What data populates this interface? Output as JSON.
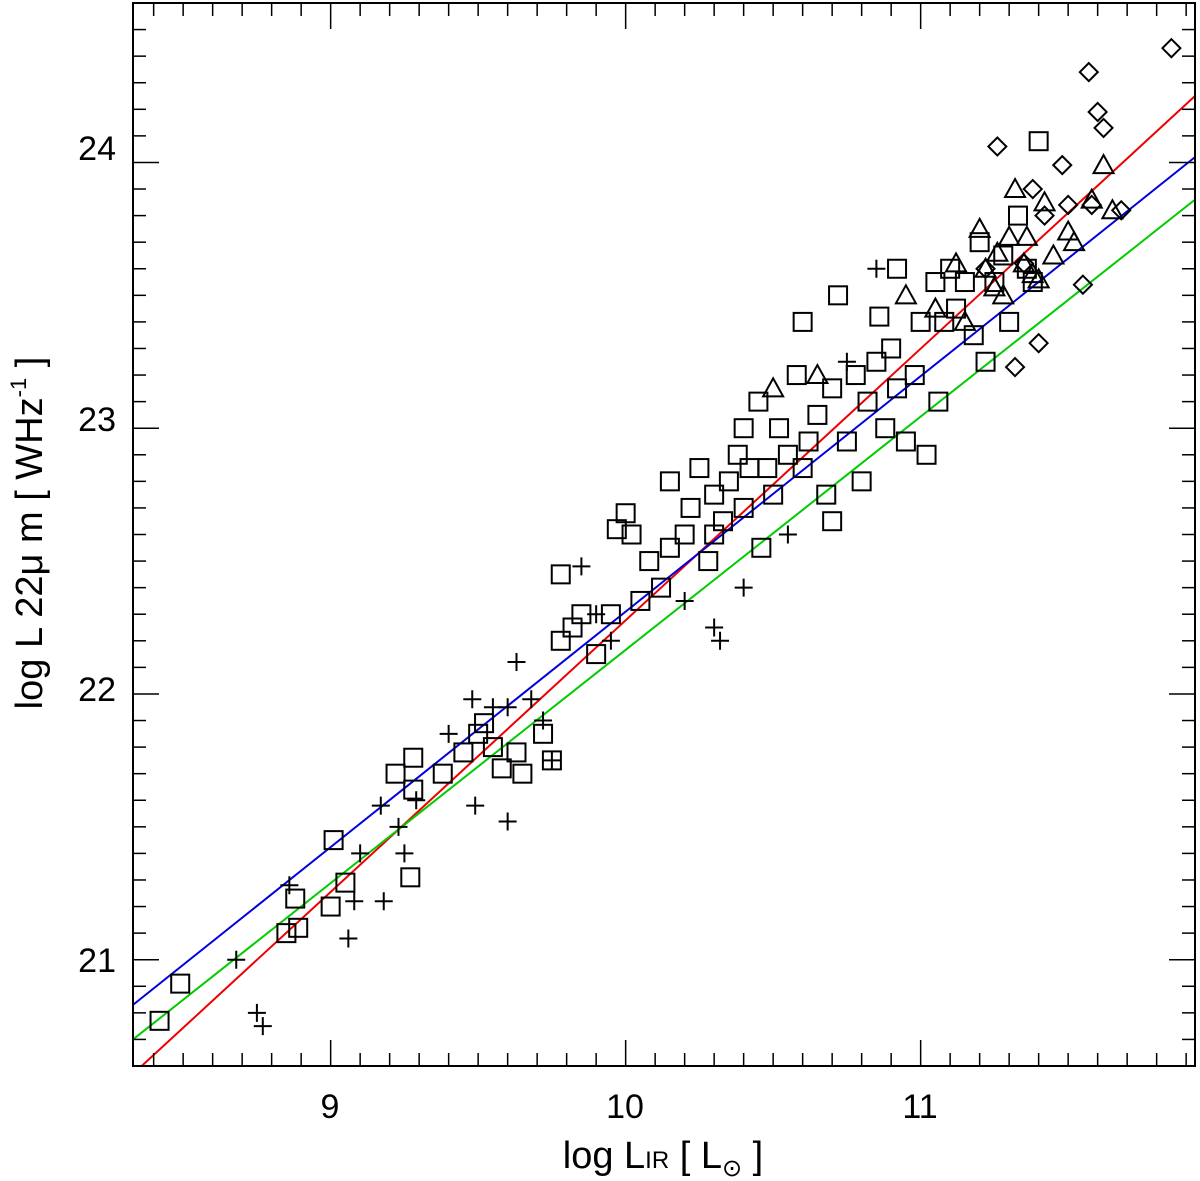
{
  "chart_data": {
    "type": "scatter",
    "xlabel": {
      "prefix": "log L",
      "sub": "IR",
      "open": " [ L",
      "sun": "⊙",
      "close": " ]"
    },
    "ylabel": {
      "prefix": "log L 22",
      "mu": "μ",
      "mid": " m [ WHz",
      "sup": "-1",
      "close": " ]"
    },
    "xlim": [
      8.33,
      11.93
    ],
    "ylim": [
      20.6,
      24.6
    ],
    "x_ticks": [
      "9",
      "10",
      "11"
    ],
    "y_ticks": [
      "21",
      "22",
      "23",
      "24"
    ],
    "x_tick_values": [
      9,
      10,
      11
    ],
    "y_tick_values": [
      21,
      22,
      23,
      24
    ],
    "x_minor_step": 0.1,
    "y_minor_step": 0.1,
    "colors": {
      "red": "#ee0000",
      "blue": "#0000dd",
      "green": "#00cc00",
      "marker": "#000000"
    },
    "fit_lines": [
      {
        "color": "red",
        "x": [
          8.33,
          11.93
        ],
        "y": [
          20.57,
          24.25
        ]
      },
      {
        "color": "blue",
        "x": [
          8.33,
          11.93
        ],
        "y": [
          20.83,
          24.02
        ]
      },
      {
        "color": "green",
        "x": [
          8.33,
          11.93
        ],
        "y": [
          20.7,
          23.86
        ]
      }
    ],
    "series": [
      {
        "marker": "square",
        "points": [
          [
            8.42,
            20.77
          ],
          [
            8.49,
            20.91
          ],
          [
            8.85,
            21.1
          ],
          [
            8.89,
            21.12
          ],
          [
            8.88,
            21.23
          ],
          [
            9.0,
            21.2
          ],
          [
            9.01,
            21.45
          ],
          [
            9.05,
            21.29
          ],
          [
            9.27,
            21.31
          ],
          [
            9.22,
            21.7
          ],
          [
            9.28,
            21.76
          ],
          [
            9.28,
            21.64
          ],
          [
            9.38,
            21.7
          ],
          [
            9.45,
            21.78
          ],
          [
            9.5,
            21.85
          ],
          [
            9.55,
            21.8
          ],
          [
            9.52,
            21.89
          ],
          [
            9.58,
            21.72
          ],
          [
            9.65,
            21.7
          ],
          [
            9.63,
            21.78
          ],
          [
            9.72,
            21.85
          ],
          [
            9.75,
            21.75
          ],
          [
            9.78,
            22.45
          ],
          [
            9.78,
            22.2
          ],
          [
            9.82,
            22.25
          ],
          [
            9.85,
            22.3
          ],
          [
            9.9,
            22.15
          ],
          [
            9.95,
            22.3
          ],
          [
            9.97,
            22.62
          ],
          [
            10.0,
            22.68
          ],
          [
            10.02,
            22.6
          ],
          [
            10.05,
            22.35
          ],
          [
            10.08,
            22.5
          ],
          [
            10.12,
            22.4
          ],
          [
            10.15,
            22.55
          ],
          [
            10.15,
            22.8
          ],
          [
            10.2,
            22.6
          ],
          [
            10.22,
            22.7
          ],
          [
            10.25,
            22.85
          ],
          [
            10.28,
            22.5
          ],
          [
            10.3,
            22.75
          ],
          [
            10.33,
            22.65
          ],
          [
            10.35,
            22.8
          ],
          [
            10.38,
            22.9
          ],
          [
            10.4,
            22.7
          ],
          [
            10.42,
            22.85
          ],
          [
            10.45,
            23.1
          ],
          [
            10.46,
            22.55
          ],
          [
            10.48,
            22.85
          ],
          [
            10.5,
            22.75
          ],
          [
            10.52,
            23.0
          ],
          [
            10.55,
            22.9
          ],
          [
            10.58,
            23.2
          ],
          [
            10.6,
            22.85
          ],
          [
            10.62,
            22.95
          ],
          [
            10.6,
            23.4
          ],
          [
            10.65,
            23.05
          ],
          [
            10.68,
            22.75
          ],
          [
            10.7,
            23.15
          ],
          [
            10.7,
            22.65
          ],
          [
            10.72,
            23.5
          ],
          [
            10.75,
            22.95
          ],
          [
            10.78,
            23.2
          ],
          [
            10.8,
            22.8
          ],
          [
            10.82,
            23.1
          ],
          [
            10.85,
            23.25
          ],
          [
            10.88,
            23.0
          ],
          [
            10.9,
            23.3
          ],
          [
            10.92,
            23.15
          ],
          [
            10.95,
            22.95
          ],
          [
            10.98,
            23.2
          ],
          [
            11.0,
            23.4
          ],
          [
            11.02,
            22.9
          ],
          [
            11.05,
            23.55
          ],
          [
            11.08,
            23.4
          ],
          [
            11.1,
            23.6
          ],
          [
            11.12,
            23.45
          ],
          [
            11.15,
            23.55
          ],
          [
            11.18,
            23.35
          ],
          [
            11.2,
            23.7
          ],
          [
            11.22,
            23.25
          ],
          [
            11.25,
            23.55
          ],
          [
            11.28,
            23.65
          ],
          [
            11.3,
            23.4
          ],
          [
            11.33,
            23.8
          ],
          [
            11.36,
            23.6
          ],
          [
            11.38,
            23.55
          ],
          [
            11.4,
            24.08
          ],
          [
            10.92,
            23.6
          ],
          [
            10.86,
            23.42
          ],
          [
            11.06,
            23.1
          ],
          [
            10.4,
            23.0
          ],
          [
            10.3,
            22.6
          ]
        ]
      },
      {
        "marker": "plus",
        "points": [
          [
            8.68,
            21.0
          ],
          [
            8.75,
            20.8
          ],
          [
            8.77,
            20.75
          ],
          [
            8.86,
            21.28
          ],
          [
            9.06,
            21.08
          ],
          [
            9.08,
            21.22
          ],
          [
            9.1,
            21.4
          ],
          [
            9.17,
            21.58
          ],
          [
            9.18,
            21.22
          ],
          [
            9.23,
            21.5
          ],
          [
            9.25,
            21.4
          ],
          [
            9.29,
            21.6
          ],
          [
            9.4,
            21.85
          ],
          [
            9.48,
            21.98
          ],
          [
            9.49,
            21.58
          ],
          [
            9.55,
            21.95
          ],
          [
            9.6,
            21.52
          ],
          [
            9.63,
            22.12
          ],
          [
            9.68,
            21.98
          ],
          [
            9.72,
            21.9
          ],
          [
            9.75,
            21.75
          ],
          [
            9.85,
            22.48
          ],
          [
            9.9,
            22.3
          ],
          [
            10.3,
            22.25
          ],
          [
            10.32,
            22.2
          ],
          [
            10.4,
            22.4
          ],
          [
            10.85,
            23.6
          ],
          [
            10.75,
            23.25
          ],
          [
            10.55,
            22.6
          ],
          [
            10.2,
            22.35
          ],
          [
            9.95,
            22.2
          ],
          [
            9.6,
            21.95
          ]
        ]
      },
      {
        "marker": "triangle",
        "points": [
          [
            10.5,
            23.15
          ],
          [
            10.65,
            23.2
          ],
          [
            10.95,
            23.5
          ],
          [
            11.05,
            23.45
          ],
          [
            11.12,
            23.62
          ],
          [
            11.15,
            23.4
          ],
          [
            11.2,
            23.75
          ],
          [
            11.22,
            23.6
          ],
          [
            11.26,
            23.66
          ],
          [
            11.28,
            23.5
          ],
          [
            11.3,
            23.72
          ],
          [
            11.32,
            23.9
          ],
          [
            11.35,
            23.62
          ],
          [
            11.38,
            23.58
          ],
          [
            11.42,
            23.85
          ],
          [
            11.45,
            23.65
          ],
          [
            11.5,
            23.74
          ],
          [
            11.52,
            23.7
          ],
          [
            11.58,
            23.86
          ],
          [
            11.62,
            23.99
          ],
          [
            11.65,
            23.82
          ],
          [
            11.36,
            23.72
          ],
          [
            11.25,
            23.53
          ],
          [
            11.4,
            23.56
          ]
        ]
      },
      {
        "marker": "diamond",
        "points": [
          [
            11.26,
            24.06
          ],
          [
            11.38,
            23.9
          ],
          [
            11.42,
            23.8
          ],
          [
            11.35,
            23.62
          ],
          [
            11.32,
            23.23
          ],
          [
            11.4,
            23.32
          ],
          [
            11.48,
            23.99
          ],
          [
            11.5,
            23.84
          ],
          [
            11.57,
            24.34
          ],
          [
            11.6,
            24.19
          ],
          [
            11.62,
            24.13
          ],
          [
            11.58,
            23.84
          ],
          [
            11.55,
            23.54
          ],
          [
            11.68,
            23.82
          ],
          [
            11.85,
            24.43
          ],
          [
            11.22,
            23.6
          ]
        ]
      }
    ]
  }
}
